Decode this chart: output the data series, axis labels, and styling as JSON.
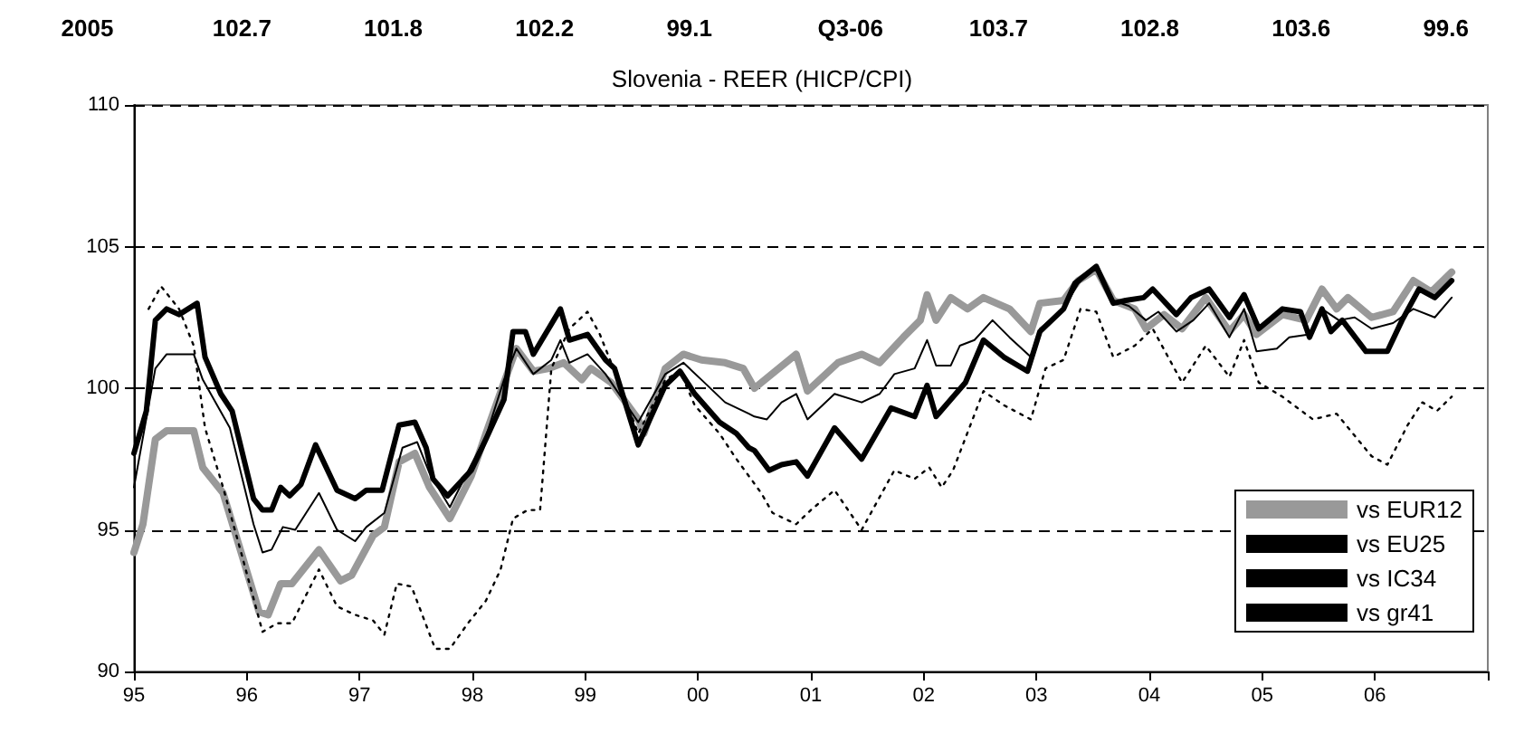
{
  "chart_data": {
    "type": "line",
    "title": "Slovenia - REER (HICP/CPI)",
    "annotations": [
      "2005",
      "102.7",
      "101.8",
      "102.2",
      "99.1",
      "Q3-06",
      "103.7",
      "102.8",
      "103.6",
      "99.6"
    ],
    "xlim": [
      1995,
      2007
    ],
    "xticks": [
      {
        "value": 1995,
        "label": "95"
      },
      {
        "value": 1996,
        "label": "96"
      },
      {
        "value": 1997,
        "label": "97"
      },
      {
        "value": 1998,
        "label": "98"
      },
      {
        "value": 1999,
        "label": "99"
      },
      {
        "value": 2000,
        "label": "00"
      },
      {
        "value": 2001,
        "label": "01"
      },
      {
        "value": 2002,
        "label": "02"
      },
      {
        "value": 2003,
        "label": "03"
      },
      {
        "value": 2004,
        "label": "04"
      },
      {
        "value": 2005,
        "label": "05"
      },
      {
        "value": 2006,
        "label": "06"
      },
      {
        "value": 2007,
        "label": null
      }
    ],
    "ylim": [
      90,
      110
    ],
    "yticks": [
      90,
      95,
      100,
      105,
      110
    ],
    "grid": "y",
    "legend": "bottom right",
    "marker": "none",
    "line_style": "solid",
    "series": [
      {
        "name": "vs EUR12",
        "color": "#999999",
        "x": [
          1995.0,
          1995.08,
          1995.19,
          1995.29,
          1995.53,
          1995.61,
          1995.79,
          1996.11,
          1996.19,
          1996.3,
          1996.4,
          1996.64,
          1996.83,
          1996.93,
          1997.12,
          1997.22,
          1997.35,
          1997.49,
          1997.62,
          1997.8,
          1997.99,
          1998.12,
          1998.28,
          1998.39,
          1998.54,
          1998.68,
          1998.81,
          1998.97,
          1999.05,
          1999.23,
          1999.47,
          1999.52,
          1999.71,
          1999.87,
          2000.03,
          2000.24,
          2000.4,
          2000.5,
          2000.87,
          2000.97,
          2001.24,
          2001.45,
          2001.61,
          2001.82,
          2001.97,
          2002.03,
          2002.11,
          2002.24,
          2002.39,
          2002.53,
          2002.76,
          2002.95,
          2003.03,
          2003.24,
          2003.37,
          2003.53,
          2003.68,
          2003.87,
          2003.97,
          2004.13,
          2004.29,
          2004.5,
          2004.71,
          2004.84,
          2004.95,
          2005.18,
          2005.39,
          2005.53,
          2005.66,
          2005.76,
          2005.97,
          2006.16,
          2006.34,
          2006.5,
          2006.68
        ],
        "values": [
          94.2,
          95.2,
          98.2,
          98.5,
          98.5,
          97.2,
          96.3,
          92.1,
          92.0,
          93.1,
          93.1,
          94.3,
          93.2,
          93.4,
          94.8,
          95.1,
          97.4,
          97.7,
          96.5,
          95.4,
          96.9,
          98.4,
          100.2,
          101.4,
          100.6,
          100.7,
          100.9,
          100.3,
          100.7,
          100.2,
          98.9,
          98.4,
          100.7,
          101.2,
          101.0,
          100.9,
          100.7,
          100.0,
          101.2,
          99.9,
          100.9,
          101.2,
          100.9,
          101.8,
          102.4,
          103.3,
          102.4,
          103.2,
          102.8,
          103.2,
          102.8,
          102.0,
          103.0,
          103.1,
          103.8,
          104.2,
          103.1,
          102.8,
          102.1,
          102.6,
          102.1,
          103.2,
          102.0,
          102.6,
          101.9,
          102.6,
          102.4,
          103.5,
          102.8,
          103.2,
          102.5,
          102.7,
          103.8,
          103.4,
          104.1
        ]
      },
      {
        "name": "vs EU25",
        "color": "#000000",
        "x": [
          1995.0,
          1995.19,
          1995.29,
          1995.53,
          1995.61,
          1995.85,
          1996.06,
          1996.14,
          1996.22,
          1996.32,
          1996.43,
          1996.64,
          1996.8,
          1996.96,
          1997.06,
          1997.22,
          1997.38,
          1997.51,
          1997.62,
          1997.8,
          1997.99,
          1998.12,
          1998.28,
          1998.39,
          1998.54,
          1998.7,
          1998.78,
          1998.86,
          1999.02,
          1999.18,
          1999.47,
          1999.71,
          1999.87,
          2000.03,
          2000.24,
          2000.45,
          2000.5,
          2000.61,
          2000.74,
          2000.87,
          2000.97,
          2001.21,
          2001.45,
          2001.61,
          2001.74,
          2001.92,
          2002.03,
          2002.11,
          2002.24,
          2002.32,
          2002.45,
          2002.61,
          2002.76,
          2002.95,
          2003.03,
          2003.24,
          2003.37,
          2003.53,
          2003.68,
          2003.82,
          2003.97,
          2004.08,
          2004.24,
          2004.39,
          2004.53,
          2004.71,
          2004.84,
          2004.95,
          2005.13,
          2005.24,
          2005.42,
          2005.53,
          2005.68,
          2005.82,
          2005.97,
          2006.16,
          2006.34,
          2006.53,
          2006.68
        ],
        "values": [
          96.5,
          100.7,
          101.2,
          101.2,
          100.3,
          98.6,
          95.2,
          94.2,
          94.3,
          95.1,
          95.0,
          96.3,
          95.0,
          94.6,
          95.1,
          95.6,
          97.9,
          98.1,
          97.0,
          95.8,
          97.3,
          98.3,
          100.3,
          101.4,
          100.5,
          101.0,
          101.7,
          100.9,
          101.2,
          100.5,
          98.8,
          100.5,
          100.9,
          100.3,
          99.5,
          99.1,
          99.0,
          98.9,
          99.5,
          99.8,
          98.9,
          99.8,
          99.5,
          99.8,
          100.5,
          100.7,
          101.7,
          100.8,
          100.8,
          101.5,
          101.7,
          102.4,
          101.8,
          101.1,
          102.1,
          102.8,
          103.7,
          104.3,
          103.1,
          102.9,
          102.4,
          102.7,
          102.0,
          102.4,
          103.0,
          101.8,
          102.8,
          101.3,
          101.4,
          101.8,
          101.9,
          102.8,
          102.4,
          102.5,
          102.1,
          102.3,
          102.8,
          102.5,
          103.2
        ]
      },
      {
        "name": "vs IC34",
        "color": "#000000",
        "x": [
          1995.0,
          1995.11,
          1995.19,
          1995.29,
          1995.4,
          1995.56,
          1995.63,
          1995.77,
          1995.87,
          1996.06,
          1996.14,
          1996.22,
          1996.3,
          1996.38,
          1996.48,
          1996.61,
          1996.8,
          1996.96,
          1997.06,
          1997.2,
          1997.35,
          1997.49,
          1997.59,
          1997.65,
          1997.78,
          1997.99,
          1998.12,
          1998.28,
          1998.36,
          1998.47,
          1998.54,
          1998.78,
          1998.86,
          1999.02,
          1999.18,
          1999.26,
          1999.47,
          1999.71,
          1999.84,
          1999.97,
          2000.19,
          2000.34,
          2000.45,
          2000.5,
          2000.63,
          2000.74,
          2000.87,
          2000.97,
          2001.21,
          2001.45,
          2001.71,
          2001.92,
          2002.03,
          2002.11,
          2002.24,
          2002.37,
          2002.53,
          2002.71,
          2002.92,
          2003.03,
          2003.24,
          2003.34,
          2003.53,
          2003.68,
          2003.79,
          2003.95,
          2004.03,
          2004.24,
          2004.37,
          2004.53,
          2004.71,
          2004.84,
          2004.97,
          2005.18,
          2005.34,
          2005.42,
          2005.53,
          2005.61,
          2005.71,
          2005.92,
          2006.11,
          2006.24,
          2006.39,
          2006.53,
          2006.68
        ],
        "values": [
          97.7,
          99.2,
          102.4,
          102.8,
          102.6,
          103.0,
          101.1,
          99.8,
          99.2,
          96.1,
          95.7,
          95.7,
          96.5,
          96.2,
          96.6,
          98.0,
          96.4,
          96.1,
          96.4,
          96.4,
          98.7,
          98.8,
          97.9,
          96.8,
          96.2,
          97.1,
          98.2,
          99.6,
          102.0,
          102.0,
          101.2,
          102.8,
          101.7,
          101.9,
          101.0,
          100.7,
          98.0,
          100.1,
          100.6,
          99.8,
          98.8,
          98.4,
          97.9,
          97.8,
          97.1,
          97.3,
          97.4,
          96.9,
          98.6,
          97.5,
          99.3,
          99.0,
          100.1,
          99.0,
          99.6,
          100.2,
          101.7,
          101.1,
          100.6,
          102.0,
          102.8,
          103.7,
          104.3,
          103.0,
          103.1,
          103.2,
          103.5,
          102.6,
          103.2,
          103.5,
          102.5,
          103.3,
          102.1,
          102.8,
          102.7,
          101.8,
          102.8,
          102.0,
          102.4,
          101.3,
          101.3,
          102.4,
          103.5,
          103.2,
          103.8
        ]
      },
      {
        "name": "vs gr41",
        "color": "#000000",
        "line_style": "dotted",
        "x": [
          1995.13,
          1995.24,
          1995.4,
          1995.53,
          1995.63,
          1995.79,
          1995.95,
          1996.14,
          1996.27,
          1996.4,
          1996.64,
          1996.8,
          1996.96,
          1997.12,
          1997.22,
          1997.33,
          1997.46,
          1997.67,
          1997.8,
          1997.96,
          1998.12,
          1998.25,
          1998.36,
          1998.49,
          1998.6,
          1998.7,
          1998.86,
          1999.02,
          1999.13,
          1999.26,
          1999.47,
          1999.71,
          1999.84,
          1999.97,
          2000.19,
          2000.34,
          2000.56,
          2000.66,
          2000.87,
          2001.0,
          2001.21,
          2001.45,
          2001.74,
          2001.92,
          2002.05,
          2002.16,
          2002.26,
          2002.53,
          2002.71,
          2002.95,
          2003.08,
          2003.24,
          2003.39,
          2003.53,
          2003.68,
          2003.87,
          2004.03,
          2004.29,
          2004.5,
          2004.71,
          2004.84,
          2004.97,
          2005.18,
          2005.45,
          2005.66,
          2005.97,
          2006.11,
          2006.29,
          2006.42,
          2006.55,
          2006.68
        ],
        "values": [
          102.8,
          103.6,
          102.8,
          101.5,
          98.6,
          96.5,
          94.2,
          91.4,
          91.7,
          91.7,
          93.6,
          92.3,
          92.0,
          91.8,
          91.3,
          93.1,
          93.0,
          90.8,
          90.8,
          91.7,
          92.5,
          93.6,
          95.4,
          95.7,
          95.7,
          100.7,
          102.1,
          102.7,
          101.9,
          100.6,
          98.4,
          100.3,
          100.6,
          99.4,
          98.4,
          97.5,
          96.3,
          95.6,
          95.2,
          95.7,
          96.4,
          95.0,
          97.1,
          96.8,
          97.2,
          96.5,
          97.1,
          99.9,
          99.4,
          98.9,
          100.7,
          101.0,
          102.8,
          102.7,
          101.1,
          101.5,
          102.1,
          100.2,
          101.5,
          100.4,
          101.7,
          100.2,
          99.7,
          98.9,
          99.1,
          97.6,
          97.3,
          98.7,
          99.5,
          99.2,
          99.7
        ]
      }
    ]
  }
}
